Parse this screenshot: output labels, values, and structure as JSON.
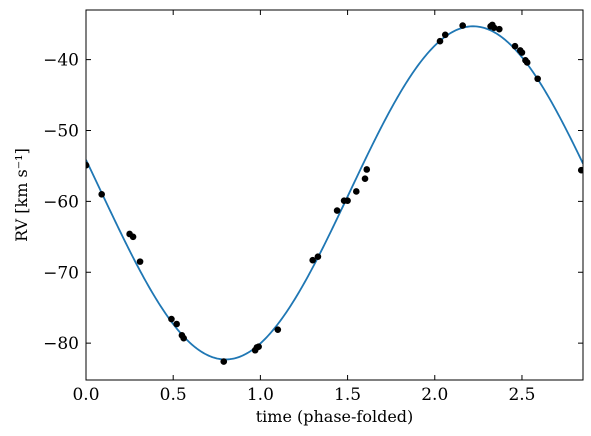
{
  "chart_data": {
    "type": "scatter",
    "xlabel": "time (phase-folded)",
    "ylabel": "RV [km s⁻¹]",
    "xlim": [
      0.0,
      2.85
    ],
    "ylim": [
      -85.2,
      -33.0
    ],
    "x_ticks": [
      0.0,
      0.5,
      1.0,
      1.5,
      2.0,
      2.5
    ],
    "x_tick_labels": [
      "0.0",
      "0.5",
      "1.0",
      "1.5",
      "2.0",
      "2.5"
    ],
    "y_ticks": [
      -80,
      -70,
      -60,
      -50,
      -40
    ],
    "y_tick_labels": [
      "−80",
      "−70",
      "−60",
      "−50",
      "−40"
    ],
    "grid": false,
    "series": [
      {
        "type": "scatter",
        "color": "#000000",
        "x": [
          0.0,
          0.09,
          0.25,
          0.27,
          0.31,
          0.49,
          0.52,
          0.55,
          0.56,
          0.79,
          0.97,
          0.98,
          0.99,
          1.1,
          1.3,
          1.33,
          1.44,
          1.48,
          1.5,
          1.55,
          1.6,
          1.61,
          2.03,
          2.06,
          2.16,
          2.32,
          2.33,
          2.34,
          2.37,
          2.46,
          2.49,
          2.5,
          2.52,
          2.53,
          2.59,
          2.84
        ],
        "y": [
          -54.9,
          -59.0,
          -64.6,
          -65.0,
          -68.5,
          -76.6,
          -77.3,
          -78.9,
          -79.3,
          -82.6,
          -81.0,
          -80.6,
          -80.5,
          -78.1,
          -68.3,
          -67.8,
          -61.3,
          -59.9,
          -59.9,
          -58.6,
          -56.8,
          -55.5,
          -37.4,
          -36.5,
          -35.2,
          -35.3,
          -35.1,
          -35.5,
          -35.7,
          -38.1,
          -38.7,
          -39.0,
          -40.1,
          -40.4,
          -42.7,
          -55.6
        ]
      },
      {
        "type": "line",
        "color": "#1f77b4",
        "amplitude": 23.5,
        "offset": -58.8,
        "period": 2.84,
        "phase_of_max": 2.22
      }
    ]
  }
}
